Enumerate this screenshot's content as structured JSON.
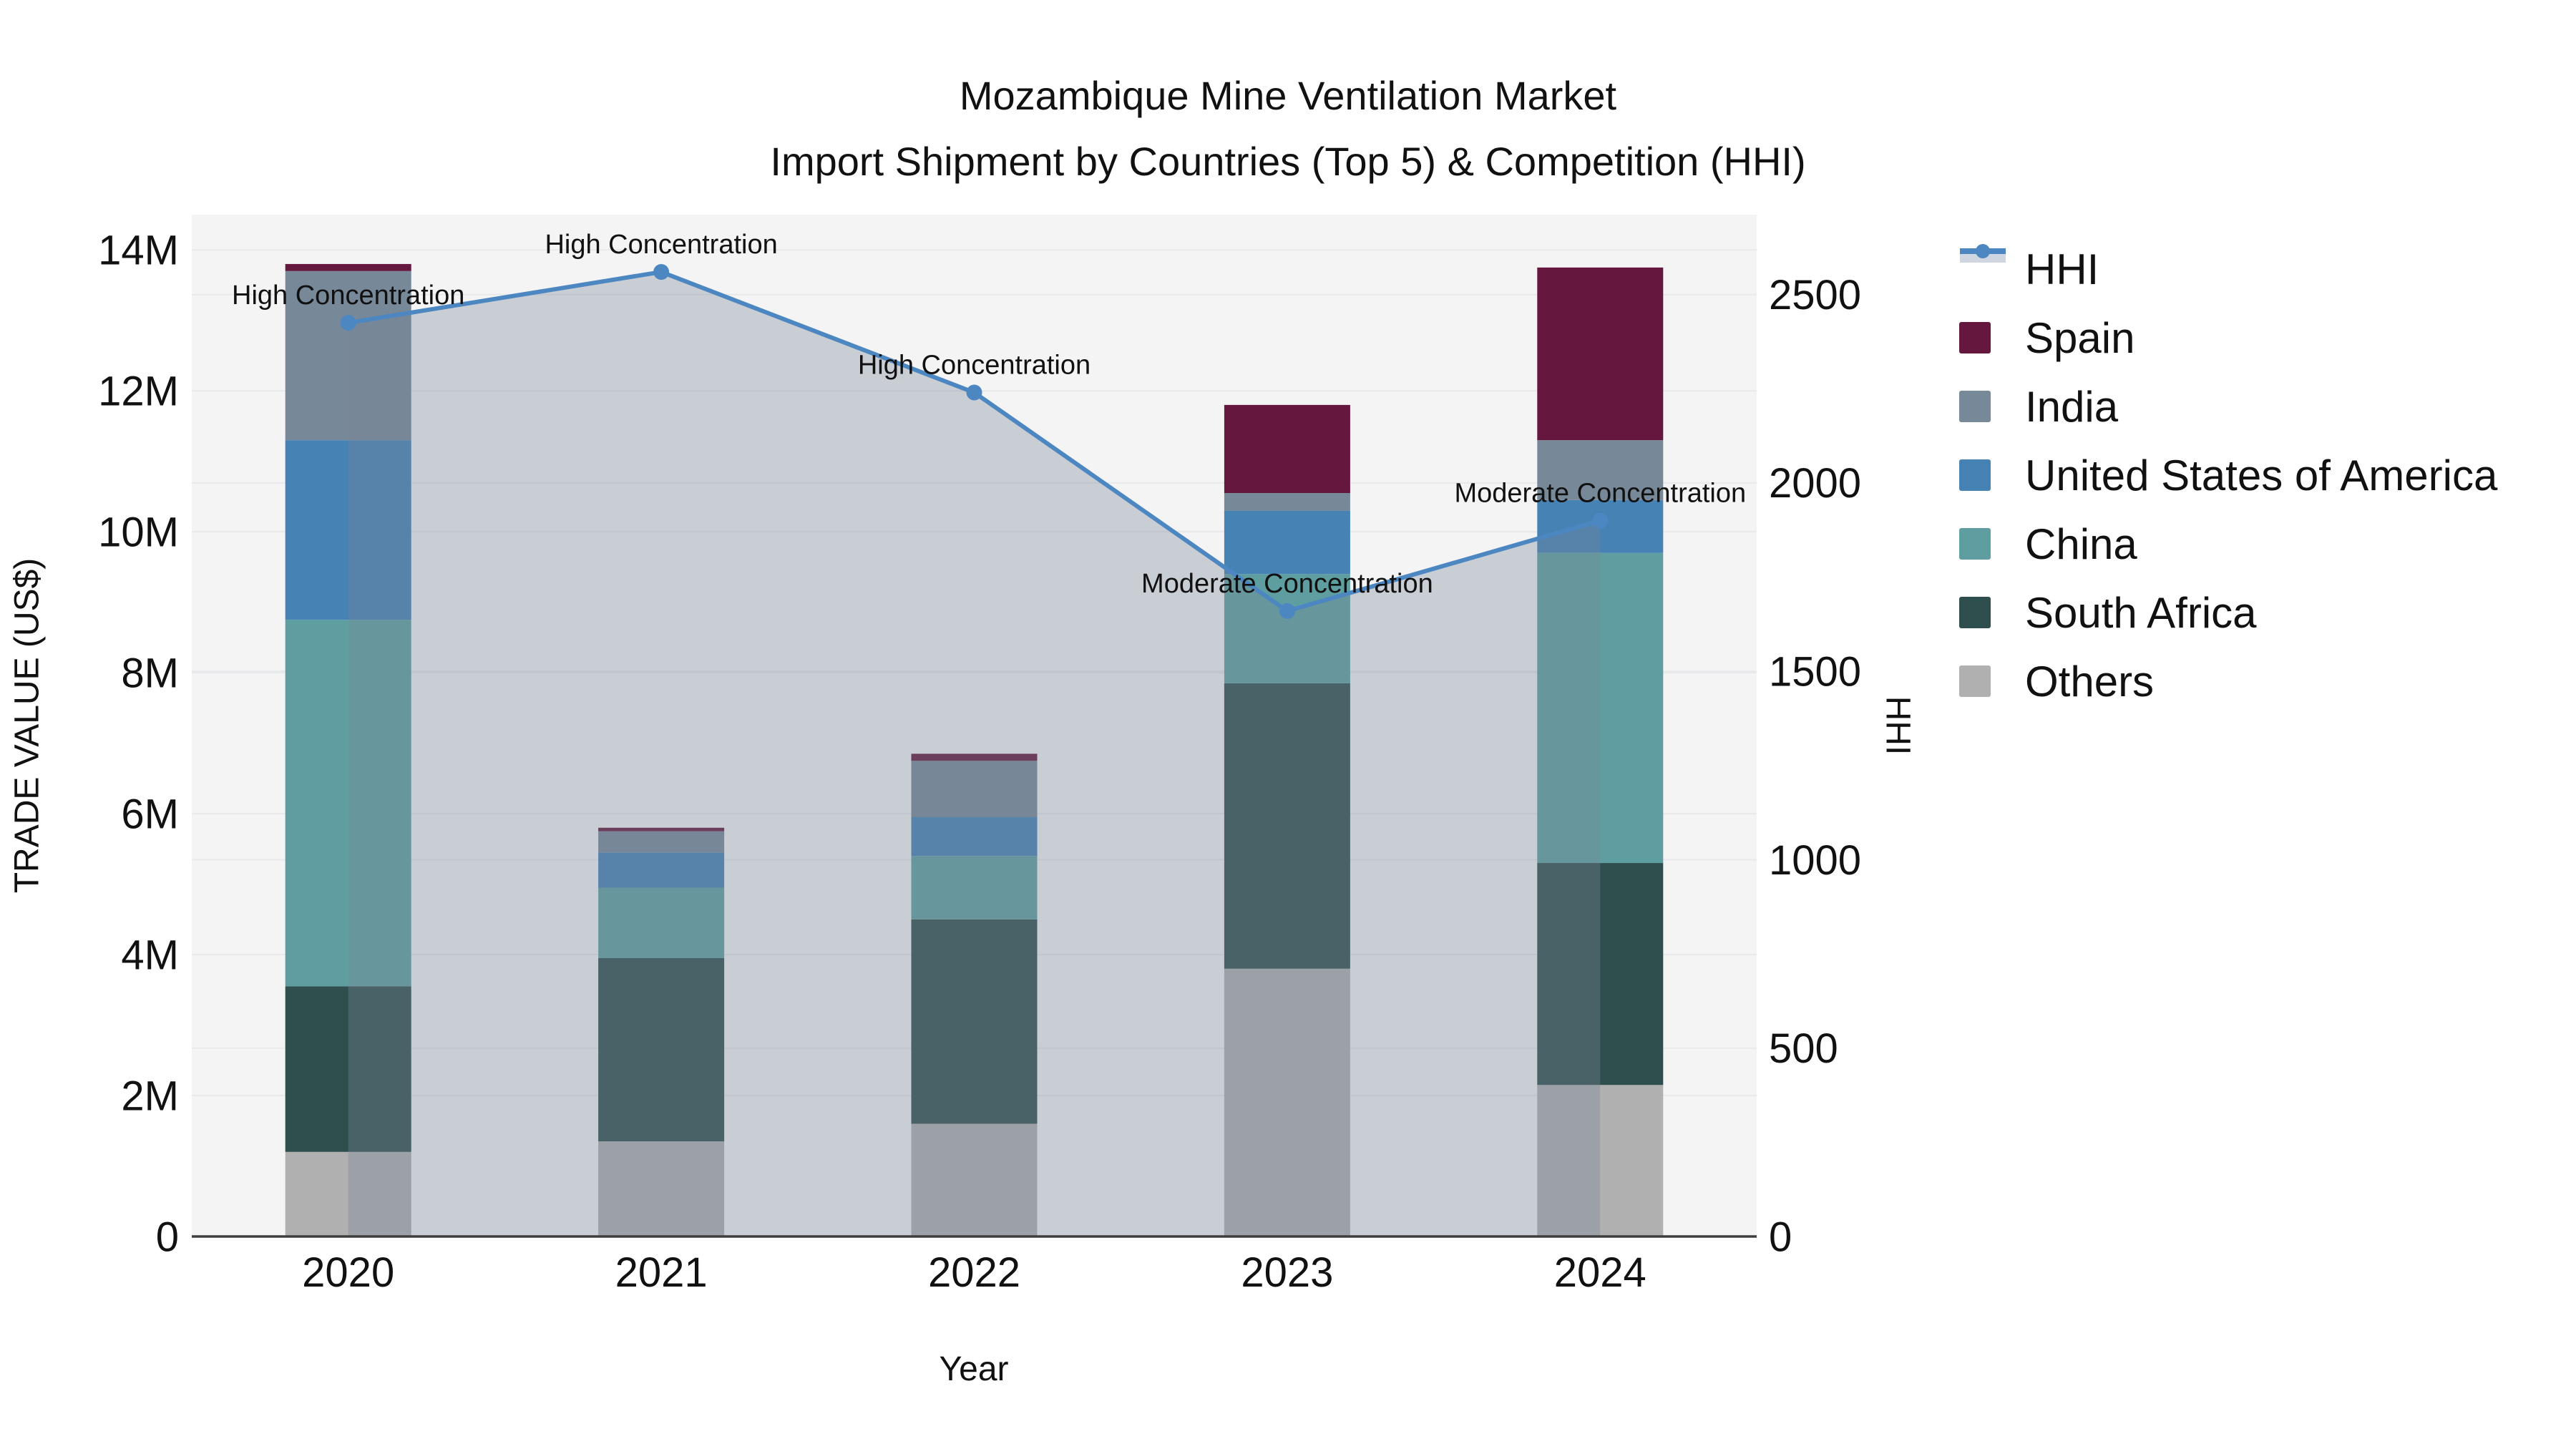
{
  "title": {
    "line1": "Mozambique Mine Ventilation Market",
    "line2": "Import Shipment by Countries (Top 5) & Competition (HHI)"
  },
  "axes": {
    "x": {
      "title": "Year",
      "categories": [
        "2020",
        "2021",
        "2022",
        "2023",
        "2024"
      ]
    },
    "left": {
      "title": "TRADE VALUE (US$)",
      "tick_labels": [
        "0",
        "2M",
        "4M",
        "6M",
        "8M",
        "10M",
        "12M",
        "14M"
      ],
      "tick_values_musd": [
        0,
        2,
        4,
        6,
        8,
        10,
        12,
        14
      ],
      "range_musd": [
        0,
        14.5
      ]
    },
    "right": {
      "title": "HHI",
      "tick_labels": [
        "0",
        "500",
        "1000",
        "1500",
        "2000",
        "2500"
      ],
      "tick_values": [
        0,
        500,
        1000,
        1500,
        2000,
        2500
      ],
      "range": [
        0,
        2712
      ]
    }
  },
  "legend": {
    "items": [
      {
        "label": "HHI",
        "type": "line",
        "color": "#4d87c1",
        "band": "#cfd6e2"
      },
      {
        "label": "Spain",
        "type": "swatch",
        "color": "#65173d"
      },
      {
        "label": "India",
        "type": "swatch",
        "color": "#778899"
      },
      {
        "label": "United States of America",
        "type": "swatch",
        "color": "#4682b4"
      },
      {
        "label": "China",
        "type": "swatch",
        "color": "#5f9ea0"
      },
      {
        "label": "South Africa",
        "type": "swatch",
        "color": "#2f4f4f"
      },
      {
        "label": "Others",
        "type": "swatch",
        "color": "#b0b0b0"
      }
    ]
  },
  "chart_data": {
    "type": "bar+line",
    "subtype": "stacked bars (left axis, US$) with HHI line + shaded area (right axis)",
    "categories": [
      "2020",
      "2021",
      "2022",
      "2023",
      "2024"
    ],
    "bar_unit": "million US$",
    "stack_order_bottom_to_top": [
      "Others",
      "South Africa",
      "China",
      "United States of America",
      "India",
      "Spain"
    ],
    "series": [
      {
        "name": "Others",
        "color": "#b0b0b0",
        "values_musd": [
          1.2,
          1.35,
          1.6,
          3.8,
          2.15
        ]
      },
      {
        "name": "South Africa",
        "color": "#2f4f4f",
        "values_musd": [
          2.35,
          2.6,
          2.9,
          4.05,
          3.15
        ]
      },
      {
        "name": "China",
        "color": "#5f9ea0",
        "values_musd": [
          5.2,
          1.0,
          0.9,
          1.55,
          4.4
        ]
      },
      {
        "name": "United States of America",
        "color": "#4682b4",
        "values_musd": [
          2.55,
          0.5,
          0.55,
          0.9,
          0.75
        ]
      },
      {
        "name": "India",
        "color": "#778899",
        "values_musd": [
          2.4,
          0.3,
          0.8,
          0.25,
          0.85
        ]
      },
      {
        "name": "Spain",
        "color": "#65173d",
        "values_musd": [
          0.1,
          0.05,
          0.1,
          1.25,
          2.45
        ]
      }
    ],
    "bar_totals_musd": [
      13.8,
      5.8,
      6.85,
      11.8,
      13.75
    ],
    "line_series": {
      "name": "HHI",
      "color": "#4d87c1",
      "area_fill": "rgba(119,136,153,0.35)",
      "values": [
        2425,
        2560,
        2240,
        1660,
        1900
      ]
    },
    "annotations": [
      {
        "category": "2020",
        "text": "High Concentration"
      },
      {
        "category": "2021",
        "text": "High Concentration"
      },
      {
        "category": "2022",
        "text": "High Concentration"
      },
      {
        "category": "2023",
        "text": "Moderate Concentration"
      },
      {
        "category": "2024",
        "text": "Moderate Concentration"
      }
    ],
    "xlabel": "Year",
    "ylabel": "TRADE VALUE (US$)",
    "y2label": "HHI",
    "legend_position": "right",
    "grid": true
  },
  "colors": {
    "plot_bg": "#f4f4f5",
    "grid_line": "#e8e9eb",
    "axis_line": "#3f3f3f",
    "text": "#111111"
  }
}
